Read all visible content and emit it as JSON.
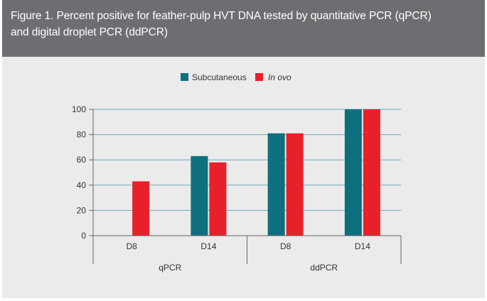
{
  "figure": {
    "title_line1": "Figure 1. Percent positive for feather-pulp HVT DNA tested by quantitative PCR (qPCR)",
    "title_line2": "and digital droplet PCR (ddPCR)"
  },
  "chart_data": {
    "type": "bar",
    "categories": [
      "D8",
      "D14",
      "D8",
      "D14"
    ],
    "groups": [
      {
        "label": "qPCR",
        "categories": [
          "D8",
          "D14"
        ]
      },
      {
        "label": "ddPCR",
        "categories": [
          "D8",
          "D14"
        ]
      }
    ],
    "series": [
      {
        "name": "Subcutaneous",
        "color": "#0e6f7e",
        "values": [
          0,
          63,
          81,
          100
        ]
      },
      {
        "name": "In ovo",
        "color": "#e8202a",
        "values": [
          43,
          58,
          81,
          100
        ]
      }
    ],
    "y_ticks": [
      "0",
      "20",
      "40",
      "60",
      "80",
      "100"
    ],
    "ylim": [
      0,
      100
    ],
    "grid": true,
    "legend_position": "top-center"
  }
}
